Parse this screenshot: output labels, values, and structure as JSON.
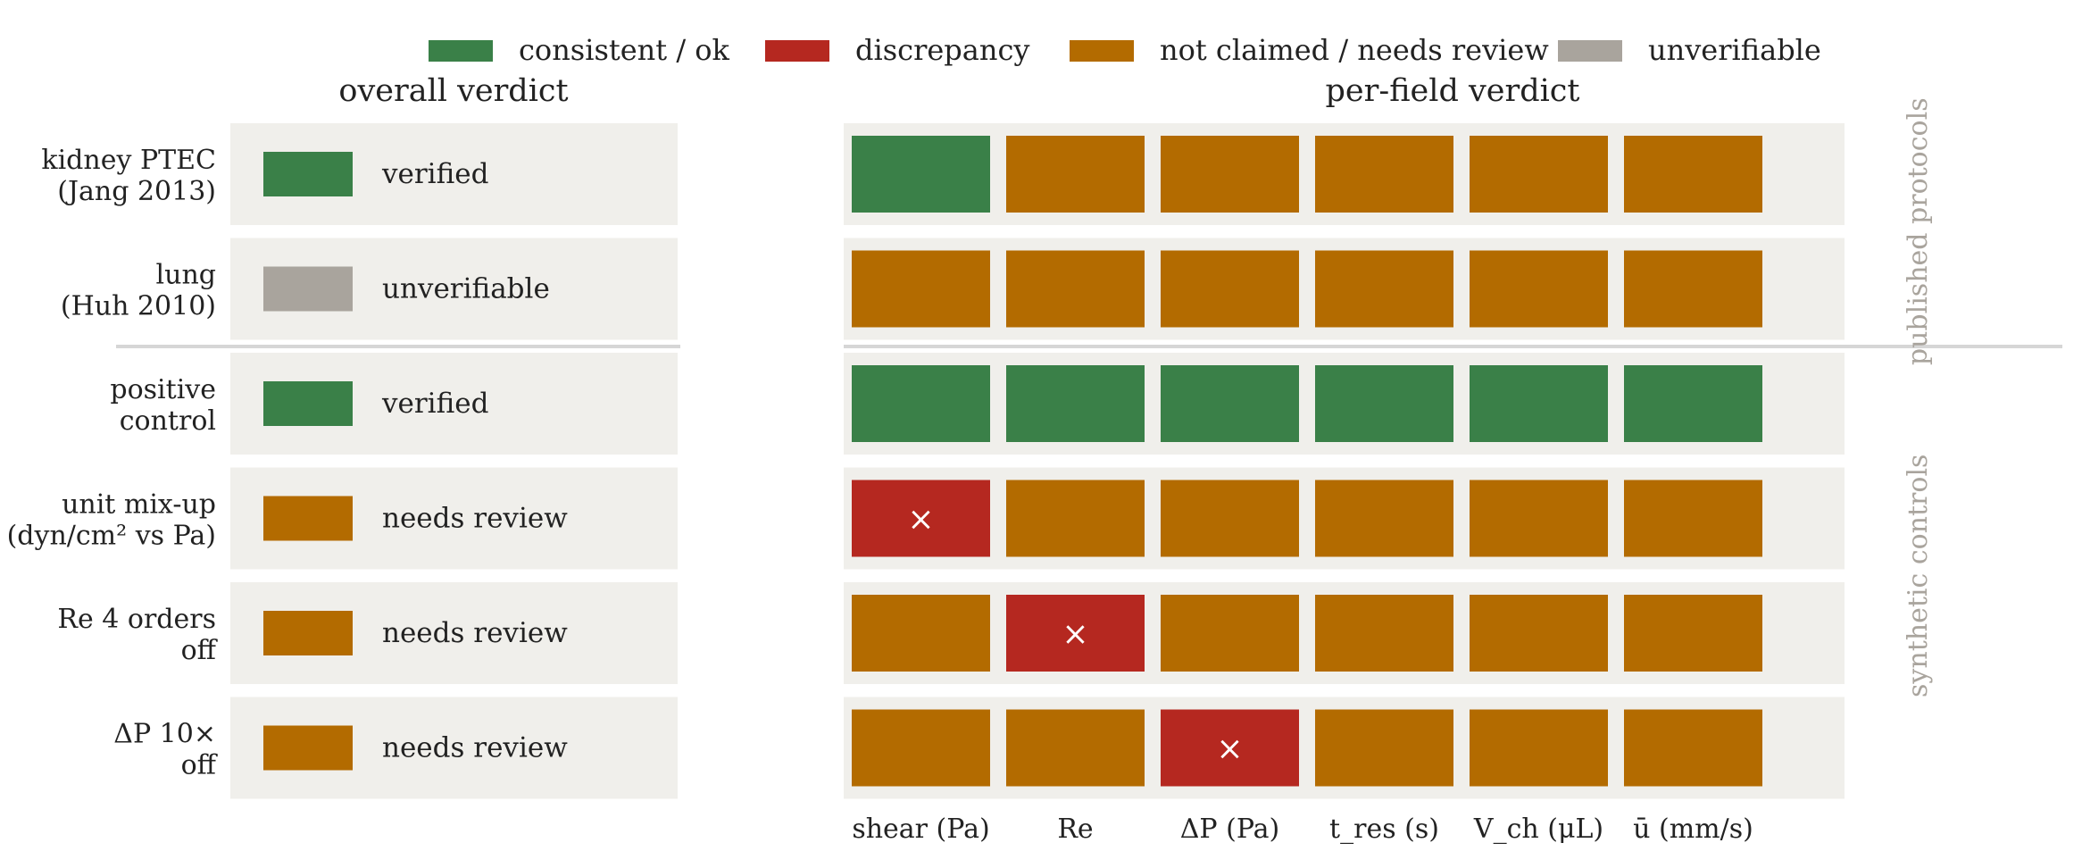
{
  "legend": [
    {
      "key": "ok",
      "label": "consistent / ok",
      "color": "#3a8048"
    },
    {
      "key": "bad",
      "label": "discrepancy",
      "color": "#b52820"
    },
    {
      "key": "review",
      "label": "not claimed / needs review",
      "color": "#b36b00"
    },
    {
      "key": "unv",
      "label": "unverifiable",
      "color": "#a9a49d"
    }
  ],
  "chart_data": {
    "type": "heatmap",
    "left_title": "overall verdict",
    "right_title": "per-field verdict",
    "columns": [
      "shear (Pa)",
      "Re",
      "ΔP (Pa)",
      "t_res (s)",
      "V_ch (μL)",
      "ū (mm/s)"
    ],
    "rows": [
      {
        "label": [
          "kidney PTEC",
          "(Jang 2013)"
        ],
        "overall": "ok",
        "overall_label": "verified",
        "fields": [
          "ok",
          "review",
          "review",
          "review",
          "review",
          "review"
        ]
      },
      {
        "label": [
          "lung",
          "(Huh 2010)"
        ],
        "overall": "unv",
        "overall_label": "unverifiable",
        "fields": [
          "review",
          "review",
          "review",
          "review",
          "review",
          "review"
        ]
      },
      {
        "label": [
          "positive",
          "control"
        ],
        "overall": "ok",
        "overall_label": "verified",
        "fields": [
          "ok",
          "ok",
          "ok",
          "ok",
          "ok",
          "ok"
        ]
      },
      {
        "label": [
          "unit mix-up",
          "(dyn/cm² vs Pa)"
        ],
        "overall": "review",
        "overall_label": "needs review",
        "fields": [
          "bad",
          "review",
          "review",
          "review",
          "review",
          "review"
        ]
      },
      {
        "label": [
          "Re 4 orders",
          "off"
        ],
        "overall": "review",
        "overall_label": "needs review",
        "fields": [
          "review",
          "bad",
          "review",
          "review",
          "review",
          "review"
        ]
      },
      {
        "label": [
          "ΔP 10×",
          "off"
        ],
        "overall": "review",
        "overall_label": "needs review",
        "fields": [
          "review",
          "review",
          "bad",
          "review",
          "review",
          "review"
        ]
      }
    ],
    "groups": [
      {
        "name": "published protocols",
        "rows": [
          0,
          1
        ]
      },
      {
        "name": "synthetic controls",
        "rows": [
          2,
          3,
          4,
          5
        ]
      }
    ],
    "discrepancy_marker": "×",
    "panel_background": "#f0efeb",
    "group_text_color": "#a9a49d"
  }
}
